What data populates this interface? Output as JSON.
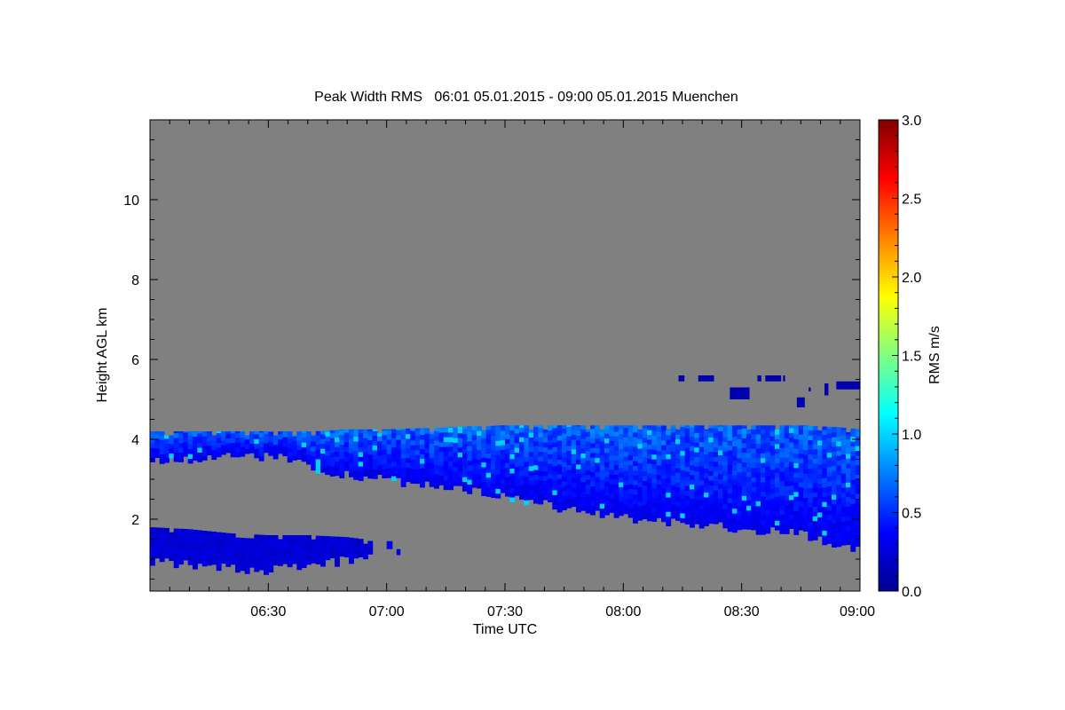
{
  "chart_data": {
    "type": "heatmap",
    "title": "Peak Width RMS   06:01 05.01.2015 - 09:00 05.01.2015 Muenchen",
    "xlabel": "Time UTC",
    "ylabel": "Height AGL km",
    "x_unit": "minutes after 06:00 UTC",
    "xlim": [
      0,
      180
    ],
    "ylim": [
      0.2,
      12
    ],
    "x_ticks": [
      {
        "value": 30,
        "label": "06:30"
      },
      {
        "value": 60,
        "label": "07:00"
      },
      {
        "value": 90,
        "label": "07:30"
      },
      {
        "value": 120,
        "label": "08:00"
      },
      {
        "value": 150,
        "label": "08:30"
      },
      {
        "value": 180,
        "label": "09:00"
      }
    ],
    "y_ticks": [
      {
        "value": 2,
        "label": "2"
      },
      {
        "value": 4,
        "label": "4"
      },
      {
        "value": 6,
        "label": "6"
      },
      {
        "value": 8,
        "label": "8"
      },
      {
        "value": 10,
        "label": "10"
      }
    ],
    "background_color": "#808080",
    "colorbar": {
      "label": "RMS m/s",
      "range": [
        0,
        3
      ],
      "ticks": [
        {
          "value": 0,
          "label": "0.0"
        },
        {
          "value": 0.5,
          "label": "0.5"
        },
        {
          "value": 1,
          "label": "1.0"
        },
        {
          "value": 1.5,
          "label": "1.5"
        },
        {
          "value": 2,
          "label": "2.0"
        },
        {
          "value": 2.5,
          "label": "2.5"
        },
        {
          "value": 3,
          "label": "3.0"
        }
      ],
      "colors": [
        "#00008f",
        "#0000ff",
        "#0080ff",
        "#00ffff",
        "#80ff80",
        "#ffff00",
        "#ff8000",
        "#ff0000",
        "#800000"
      ]
    },
    "layers": [
      {
        "name": "upper cloud layer",
        "typical_rms": [
          0.15,
          0.9
        ],
        "profile_min_bottom_top": [
          [
            0,
            3.6,
            4.2
          ],
          [
            10,
            3.6,
            4.2
          ],
          [
            20,
            3.75,
            4.2
          ],
          [
            30,
            3.7,
            4.2
          ],
          [
            38,
            3.6,
            4.2
          ],
          [
            42,
            3.3,
            4.2
          ],
          [
            50,
            3.25,
            4.25
          ],
          [
            60,
            3.1,
            4.25
          ],
          [
            75,
            2.95,
            4.3
          ],
          [
            90,
            2.7,
            4.35
          ],
          [
            105,
            2.4,
            4.35
          ],
          [
            120,
            2.15,
            4.35
          ],
          [
            135,
            2.05,
            4.35
          ],
          [
            150,
            1.9,
            4.35
          ],
          [
            165,
            1.75,
            4.35
          ],
          [
            175,
            1.5,
            4.3
          ],
          [
            180,
            1.4,
            4.25
          ]
        ]
      },
      {
        "name": "lower cloud layer",
        "typical_rms": [
          0.1,
          0.5
        ],
        "profile_min_bottom_top": [
          [
            0,
            1.1,
            1.8
          ],
          [
            10,
            1.0,
            1.75
          ],
          [
            20,
            0.9,
            1.65
          ],
          [
            30,
            0.85,
            1.6
          ],
          [
            40,
            0.95,
            1.6
          ],
          [
            50,
            1.1,
            1.55
          ],
          [
            54,
            1.2,
            1.5
          ],
          [
            56,
            1.3,
            1.45
          ]
        ]
      }
    ],
    "isolated_echoes": [
      {
        "t": [
          60,
          61.5
        ],
        "h": [
          1.25,
          1.45
        ],
        "rms": 0.3
      },
      {
        "t": [
          62.5,
          63.5
        ],
        "h": [
          1.1,
          1.25
        ],
        "rms": 0.3
      },
      {
        "t": [
          134,
          135.5
        ],
        "h": [
          5.45,
          5.6
        ],
        "rms": 0.1
      },
      {
        "t": [
          139,
          143
        ],
        "h": [
          5.45,
          5.6
        ],
        "rms": 0.1
      },
      {
        "t": [
          147,
          152
        ],
        "h": [
          5.0,
          5.3
        ],
        "rms": 0.1
      },
      {
        "t": [
          154,
          155
        ],
        "h": [
          5.45,
          5.6
        ],
        "rms": 0.1
      },
      {
        "t": [
          156,
          160
        ],
        "h": [
          5.45,
          5.6
        ],
        "rms": 0.1
      },
      {
        "t": [
          160.5,
          161
        ],
        "h": [
          5.45,
          5.6
        ],
        "rms": 0.1
      },
      {
        "t": [
          164,
          166
        ],
        "h": [
          4.8,
          5.05
        ],
        "rms": 0.1
      },
      {
        "t": [
          167,
          167.5
        ],
        "h": [
          5.2,
          5.3
        ],
        "rms": 0.1
      },
      {
        "t": [
          171,
          172
        ],
        "h": [
          5.1,
          5.4
        ],
        "rms": 0.1
      },
      {
        "t": [
          174,
          180
        ],
        "h": [
          5.25,
          5.45
        ],
        "rms": 0.1
      }
    ]
  }
}
